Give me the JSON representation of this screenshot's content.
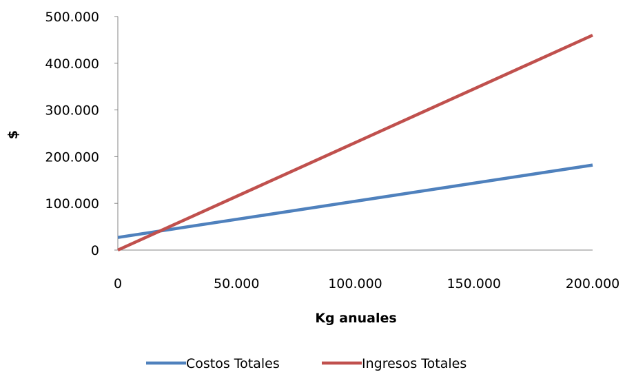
{
  "chart_data": {
    "type": "line",
    "title": "",
    "xlabel": "Kg anuales",
    "ylabel": "$",
    "xlim": [
      0,
      200000
    ],
    "ylim": [
      0,
      500000
    ],
    "x_ticks": [
      0,
      50000,
      100000,
      150000,
      200000
    ],
    "x_tick_labels": [
      "0",
      "50.000",
      "100.000",
      "150.000",
      "200.000"
    ],
    "y_ticks": [
      0,
      100000,
      200000,
      300000,
      400000,
      500000
    ],
    "y_tick_labels": [
      "0",
      "100.000",
      "200.000",
      "300.000",
      "400.000",
      "500.000"
    ],
    "grid": false,
    "legend_position": "bottom",
    "series": [
      {
        "name": "Costos Totales",
        "color": "#4f81bd",
        "x": [
          0,
          200000
        ],
        "y": [
          27000,
          182000
        ]
      },
      {
        "name": "Ingresos Totales",
        "color": "#c0504d",
        "x": [
          0,
          200000
        ],
        "y": [
          0,
          460000
        ]
      }
    ]
  }
}
